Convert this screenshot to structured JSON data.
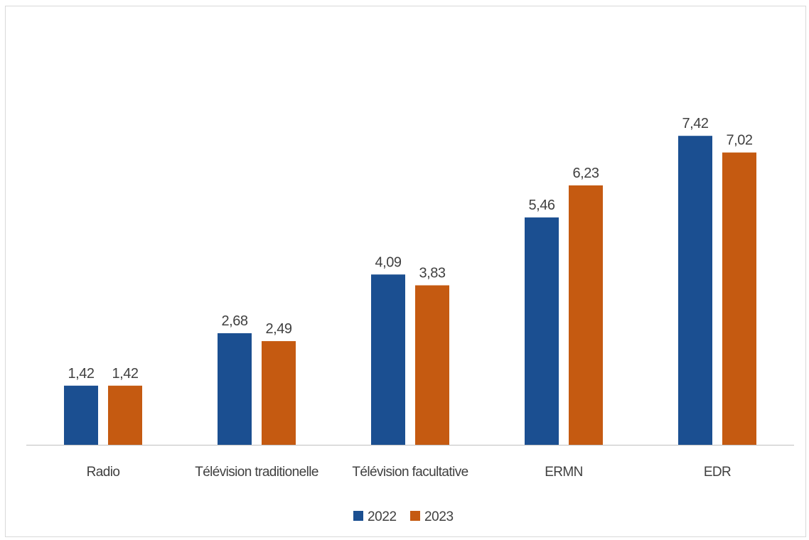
{
  "chart_data": {
    "type": "bar",
    "title": "",
    "xlabel": "",
    "ylabel": "",
    "categories": [
      "Radio",
      "Télévision traditionelle",
      "Télévision facultative",
      "ERMN",
      "EDR"
    ],
    "series": [
      {
        "name": "2022",
        "values": [
          1.42,
          2.68,
          4.09,
          5.46,
          7.42
        ],
        "labels": [
          "1,42",
          "2,68",
          "4,09",
          "5,46",
          "7,42"
        ],
        "color": "#1B4F91"
      },
      {
        "name": "2023",
        "values": [
          1.42,
          2.49,
          3.83,
          6.23,
          7.02
        ],
        "labels": [
          "1,42",
          "2,49",
          "3,83",
          "6,23",
          "7,02"
        ],
        "color": "#C55A11"
      }
    ],
    "ylim": [
      0,
      8
    ],
    "grid": false,
    "legend_position": "bottom",
    "axis_color": "#bfbfbf"
  }
}
